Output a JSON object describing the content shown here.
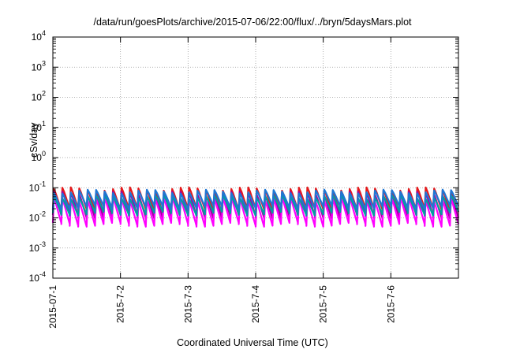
{
  "chart_data": {
    "type": "line",
    "title": "/data/run/goesPlots/archive/2015-07-06/22:00/flux/../bryn/5daysMars.plot",
    "xlabel": "Coordinated Universal Time (UTC)",
    "ylabel": "cSv/day",
    "y_scale": "log",
    "ylim": [
      0.0001,
      10000
    ],
    "y_ticks": [
      {
        "base": "10",
        "exp": "-4"
      },
      {
        "base": "10",
        "exp": "-3"
      },
      {
        "base": "10",
        "exp": "-2"
      },
      {
        "base": "10",
        "exp": "-1"
      },
      {
        "base": "10",
        "exp": "0"
      },
      {
        "base": "10",
        "exp": "1"
      },
      {
        "base": "10",
        "exp": "2"
      },
      {
        "base": "10",
        "exp": "3"
      },
      {
        "base": "10",
        "exp": "4"
      }
    ],
    "xlim": [
      "2015-07-01",
      "2015-07-07"
    ],
    "x_ticks": [
      "2015-07-1",
      "2015-7-2",
      "2015-7-3",
      "2015-7-4",
      "2015-7-5",
      "2015-7-6"
    ],
    "grid": true,
    "legend": "none",
    "pattern": "sawtooth",
    "period_hours": 3,
    "cycles_per_day": 8,
    "series": [
      {
        "color": "#e41a1c",
        "peak": 0.09,
        "trough": 0.018
      },
      {
        "color": "#a000a0",
        "peak": 0.065,
        "trough": 0.011
      },
      {
        "color": "#ff00ff",
        "peak": 0.04,
        "trough": 0.006
      },
      {
        "color": "#00a0a0",
        "peak": 0.05,
        "trough": 0.014
      },
      {
        "color": "#1f77d4",
        "peak": 0.075,
        "trough": 0.022
      }
    ]
  }
}
